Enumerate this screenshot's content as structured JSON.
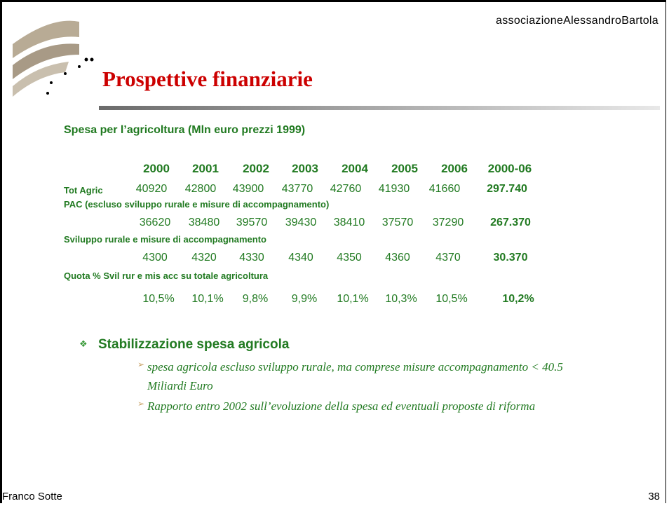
{
  "header": {
    "organization": "associazioneAlessandroBartola",
    "title": "Prospettive finanziarie"
  },
  "table": {
    "caption": "Spesa per l’agricoltura (Mln euro prezzi 1999)",
    "columns": [
      "2000",
      "2001",
      "2002",
      "2003",
      "2004",
      "2005",
      "2006",
      "2000-06"
    ],
    "rows": [
      {
        "label": "Tot Agric",
        "values": [
          "40920",
          "42800",
          "43900",
          "43770",
          "42760",
          "41930",
          "41660",
          "297.740"
        ]
      },
      {
        "label": "PAC (escluso sviluppo rurale e misure di accompagnamento)",
        "values": [
          "36620",
          "38480",
          "39570",
          "39430",
          "38410",
          "37570",
          "37290",
          "267.370"
        ]
      },
      {
        "label": "Sviluppo rurale e misure di accompagnamento",
        "values": [
          "4300",
          "4320",
          "4330",
          "4340",
          "4350",
          "4360",
          "4370",
          "30.370"
        ]
      },
      {
        "label": "Quota % Svil rur e mis acc su totale agricoltura",
        "values": [
          "10,5%",
          "10,1%",
          "9,8%",
          "9,9%",
          "10,1%",
          "10,3%",
          "10,5%",
          "10,2%"
        ]
      }
    ]
  },
  "bullets": [
    {
      "text": "Stabilizzazione spesa agricola",
      "items": [
        "spesa agricola escluso sviluppo rurale, ma comprese misure accompagnamento < 40.5 Miliardi Euro",
        "Rapporto entro 2002 sull’evoluzione della spesa ed eventuali proposte di riforma"
      ]
    }
  ],
  "footer": {
    "author": "Franco Sotte",
    "page": "38"
  }
}
